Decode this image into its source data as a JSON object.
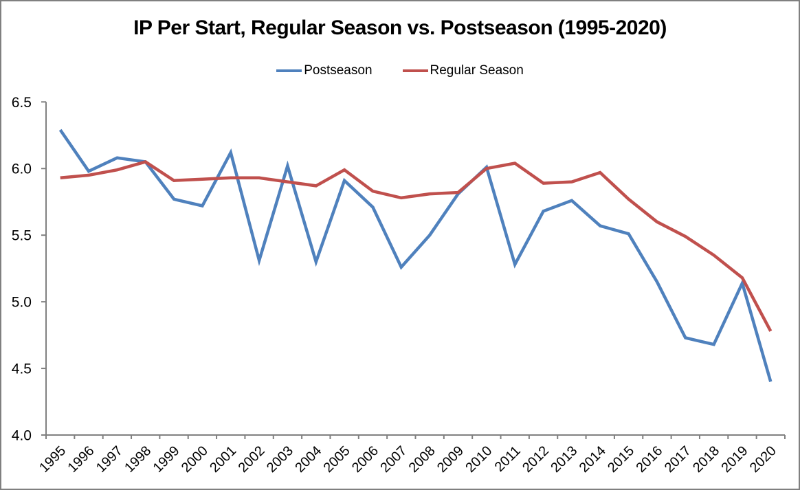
{
  "title": "IP Per Start, Regular Season vs. Postseason (1995-2020)",
  "legend": [
    {
      "label": "Postseason",
      "color": "#4F81BD"
    },
    {
      "label": "Regular Season",
      "color": "#C0504D"
    }
  ],
  "chart_data": {
    "type": "line",
    "title": "IP Per Start, Regular Season vs. Postseason (1995-2020)",
    "categories": [
      "1995",
      "1996",
      "1997",
      "1998",
      "1999",
      "2000",
      "2001",
      "2002",
      "2003",
      "2004",
      "2005",
      "2006",
      "2007",
      "2008",
      "2009",
      "2010",
      "2011",
      "2012",
      "2013",
      "2014",
      "2015",
      "2016",
      "2017",
      "2018",
      "2019",
      "2020"
    ],
    "series": [
      {
        "name": "Postseason",
        "color": "#4F81BD",
        "values": [
          6.29,
          5.98,
          6.08,
          6.05,
          5.77,
          5.72,
          6.12,
          5.31,
          6.02,
          5.3,
          5.91,
          5.71,
          5.26,
          5.5,
          5.81,
          6.01,
          5.28,
          5.68,
          5.76,
          5.57,
          5.51,
          5.15,
          4.73,
          4.68,
          5.14,
          4.4
        ]
      },
      {
        "name": "Regular Season",
        "color": "#C0504D",
        "values": [
          5.93,
          5.95,
          5.99,
          6.05,
          5.91,
          5.92,
          5.93,
          5.93,
          5.9,
          5.87,
          5.99,
          5.83,
          5.78,
          5.81,
          5.82,
          6.0,
          6.04,
          5.89,
          5.9,
          5.97,
          5.77,
          5.6,
          5.49,
          5.35,
          5.18,
          4.78
        ]
      }
    ],
    "xlabel": "",
    "ylabel": "",
    "ylim": [
      4.0,
      6.5
    ],
    "yticks": [
      4.0,
      4.5,
      5.0,
      5.5,
      6.0,
      6.5
    ],
    "ytick_labels": [
      "4.0",
      "4.5",
      "5.0",
      "5.5",
      "6.0",
      "6.5"
    ],
    "grid": false,
    "legend_position": "top",
    "axis_color": "#808080"
  }
}
